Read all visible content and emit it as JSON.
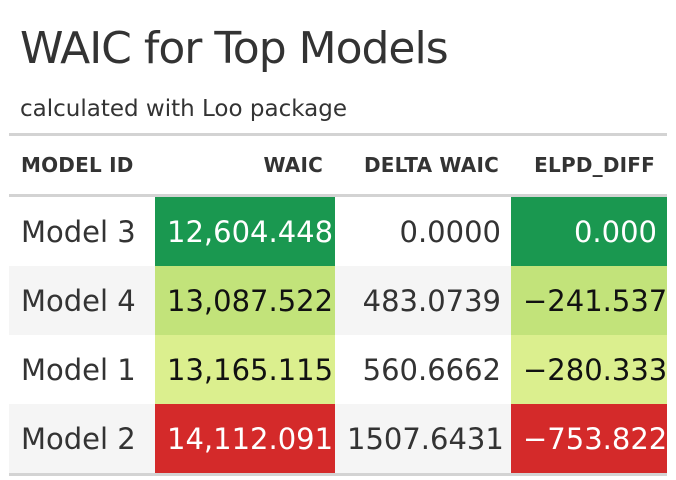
{
  "title": "WAIC for Top Models",
  "subtitle": "calculated with Loo package",
  "table": {
    "headers": [
      "MODEL ID",
      "WAIC",
      "DELTA WAIC",
      "ELPD_DIFF"
    ],
    "rows": [
      {
        "model": "Model 3",
        "waic": "12,604.448",
        "delta": "0.0000",
        "elpd": "0.000"
      },
      {
        "model": "Model 4",
        "waic": "13,087.522",
        "delta": "483.0739",
        "elpd": "−241.537"
      },
      {
        "model": "Model 1",
        "waic": "13,165.115",
        "delta": "560.6662",
        "elpd": "−280.333"
      },
      {
        "model": "Model 2",
        "waic": "14,112.091",
        "delta": "1507.6431",
        "elpd": "−753.822"
      }
    ]
  },
  "colors": {
    "dark_green": "#1a9850",
    "light_green": "#c2e37a",
    "pale_green": "#dbef8e",
    "red": "#d42a2a"
  }
}
